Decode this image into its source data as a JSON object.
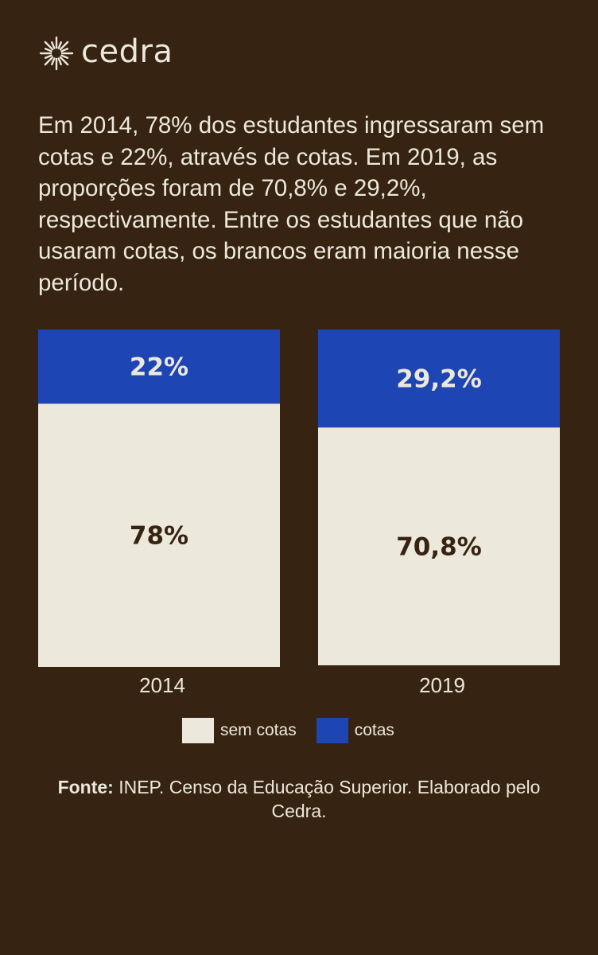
{
  "brand": {
    "name": "cedra"
  },
  "intro_text": "Em 2014, 78% dos estudantes ingressaram sem cotas e 22%, através de cotas. Em 2019, as proporções foram de 70,8% e 29,2%, respectivamente. Entre os estudantes que não usaram cotas, os brancos eram maioria nesse período.",
  "chart_data": {
    "type": "bar",
    "stacked": true,
    "categories": [
      "2014",
      "2019"
    ],
    "series": [
      {
        "name": "sem cotas",
        "values": [
          78,
          70.8
        ],
        "labels": [
          "78%",
          "70,8%"
        ],
        "color": "#ece8dc"
      },
      {
        "name": "cotas",
        "values": [
          22,
          29.2
        ],
        "labels": [
          "22%",
          "29,2%"
        ],
        "color": "#1e45b4"
      }
    ],
    "ylim": [
      0,
      100
    ],
    "legend_position": "bottom"
  },
  "colors": {
    "background": "#362311",
    "text": "#ece8dc",
    "dark_label": "#362311"
  },
  "source": {
    "label": "Fonte:",
    "text": " INEP. Censo da Educação Superior. Elaborado pelo Cedra."
  }
}
